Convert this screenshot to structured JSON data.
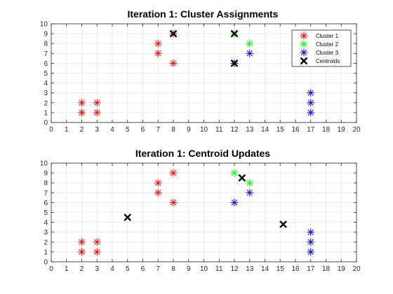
{
  "colors": {
    "cluster1": "#ff0000",
    "cluster2": "#00ff00",
    "cluster3": "#0000ff",
    "centroid": "#000000",
    "grid": "#dedede",
    "axis": "#262626"
  },
  "chart_data": [
    {
      "type": "scatter",
      "title": "Iteration 1: Cluster Assignments",
      "xlim": [
        0,
        20
      ],
      "ylim": [
        0,
        10
      ],
      "xticks": [
        0,
        1,
        2,
        3,
        4,
        5,
        6,
        7,
        8,
        9,
        10,
        11,
        12,
        13,
        14,
        15,
        16,
        17,
        18,
        19,
        20
      ],
      "yticks": [
        0,
        1,
        2,
        3,
        4,
        5,
        6,
        7,
        8,
        9,
        10
      ],
      "grid": true,
      "legend_position": "top-right",
      "series": [
        {
          "name": "Cluster 1",
          "marker": "asterisk",
          "color": "#ff0000",
          "points": [
            [
              2,
              1
            ],
            [
              2,
              2
            ],
            [
              3,
              1
            ],
            [
              3,
              2
            ],
            [
              7,
              7
            ],
            [
              7,
              8
            ],
            [
              8,
              6
            ],
            [
              8,
              9
            ]
          ]
        },
        {
          "name": "Cluster 2",
          "marker": "asterisk",
          "color": "#00ff00",
          "points": [
            [
              12,
              9
            ],
            [
              13,
              8
            ]
          ]
        },
        {
          "name": "Cluster 3",
          "marker": "asterisk",
          "color": "#0000ff",
          "points": [
            [
              12,
              6
            ],
            [
              13,
              7
            ],
            [
              17,
              1
            ],
            [
              17,
              2
            ],
            [
              17,
              3
            ]
          ]
        },
        {
          "name": "Centroids",
          "marker": "x",
          "color": "#000000",
          "points": [
            [
              8,
              9
            ],
            [
              12,
              9
            ],
            [
              12,
              6
            ]
          ]
        }
      ]
    },
    {
      "type": "scatter",
      "title": "Iteration 1: Centroid Updates",
      "xlim": [
        0,
        20
      ],
      "ylim": [
        0,
        10
      ],
      "xticks": [
        0,
        1,
        2,
        3,
        4,
        5,
        6,
        7,
        8,
        9,
        10,
        11,
        12,
        13,
        14,
        15,
        16,
        17,
        18,
        19,
        20
      ],
      "yticks": [
        0,
        1,
        2,
        3,
        4,
        5,
        6,
        7,
        8,
        9,
        10
      ],
      "grid": true,
      "series": [
        {
          "marker": "asterisk",
          "color": "#ff0000",
          "points": [
            [
              2,
              1
            ],
            [
              2,
              2
            ],
            [
              3,
              1
            ],
            [
              3,
              2
            ],
            [
              7,
              7
            ],
            [
              7,
              8
            ],
            [
              8,
              6
            ],
            [
              8,
              9
            ]
          ]
        },
        {
          "marker": "asterisk",
          "color": "#00ff00",
          "points": [
            [
              12,
              9
            ],
            [
              13,
              8
            ]
          ]
        },
        {
          "marker": "asterisk",
          "color": "#0000ff",
          "points": [
            [
              12,
              6
            ],
            [
              13,
              7
            ],
            [
              17,
              1
            ],
            [
              17,
              2
            ],
            [
              17,
              3
            ]
          ]
        },
        {
          "marker": "x",
          "color": "#000000",
          "points": [
            [
              5,
              4.5
            ],
            [
              12.5,
              8.5
            ],
            [
              15.2,
              3.8
            ]
          ]
        }
      ]
    }
  ]
}
